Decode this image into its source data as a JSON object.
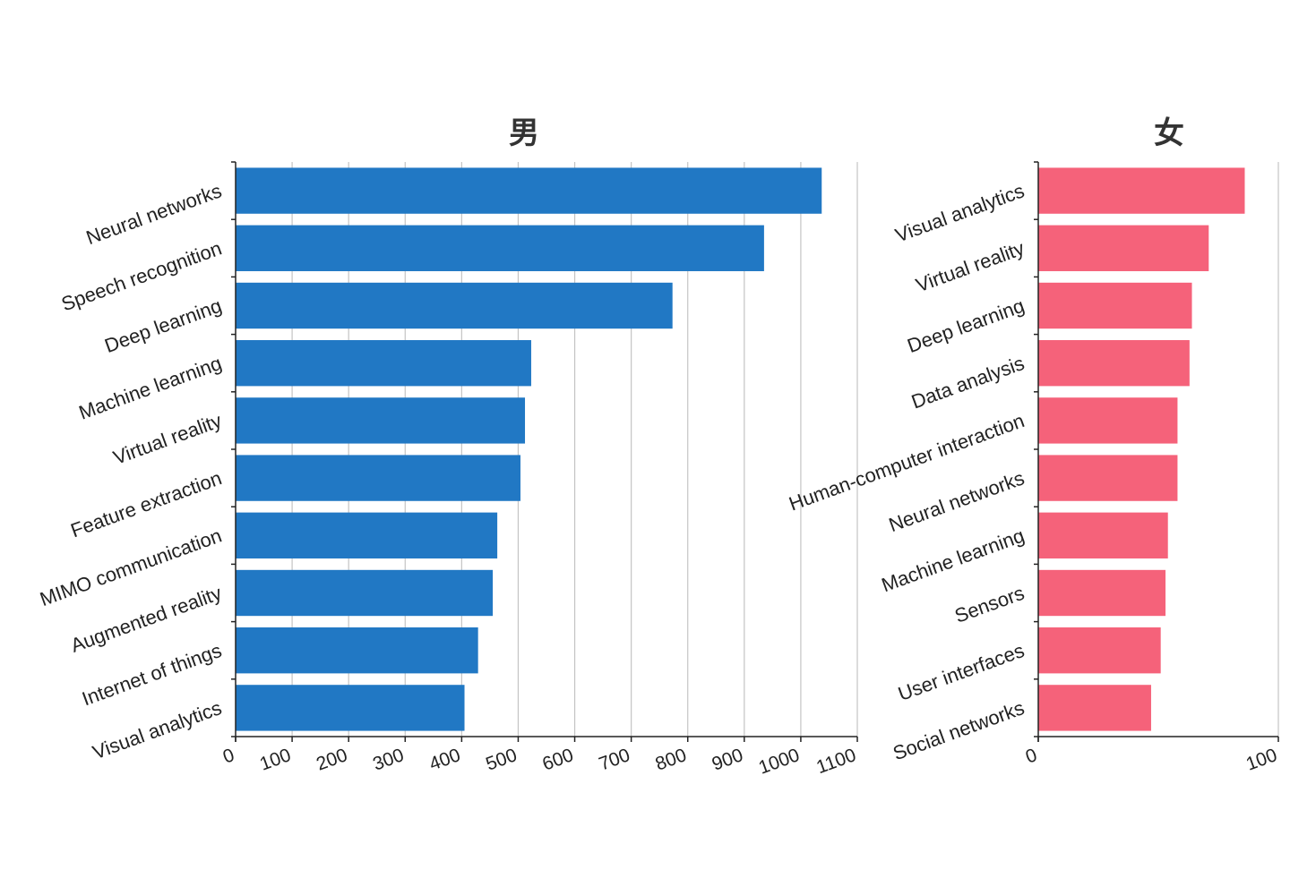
{
  "chart_data": [
    {
      "type": "bar",
      "orientation": "horizontal",
      "title": "男",
      "color": "#2178c4",
      "categories": [
        "Neural networks",
        "Speech recognition",
        "Deep learning",
        "Machine learning",
        "Virtual reality",
        "Feature extraction",
        "MIMO communication",
        "Augmented reality",
        "Internet of things",
        "Visual analytics"
      ],
      "values": [
        1037,
        935,
        773,
        523,
        512,
        504,
        463,
        455,
        429,
        405
      ],
      "xlim": [
        0,
        1100
      ],
      "ticks": [
        0,
        100,
        200,
        300,
        400,
        500,
        600,
        700,
        800,
        900,
        1000,
        1100
      ],
      "grid": true,
      "xlabel": "",
      "ylabel": ""
    },
    {
      "type": "bar",
      "orientation": "horizontal",
      "title": "女",
      "color": "#f5627a",
      "categories": [
        "Visual analytics",
        "Virtual reality",
        "Deep learning",
        "Data analysis",
        "Human-computer interaction",
        "Neural networks",
        "Machine learning",
        "Sensors",
        "User interfaces",
        "Social networks"
      ],
      "values": [
        86,
        71,
        64,
        63,
        58,
        58,
        54,
        53,
        51,
        47
      ],
      "xlim": [
        0,
        100
      ],
      "ticks": [
        0,
        100
      ],
      "grid": true,
      "xlabel": "",
      "ylabel": ""
    }
  ]
}
